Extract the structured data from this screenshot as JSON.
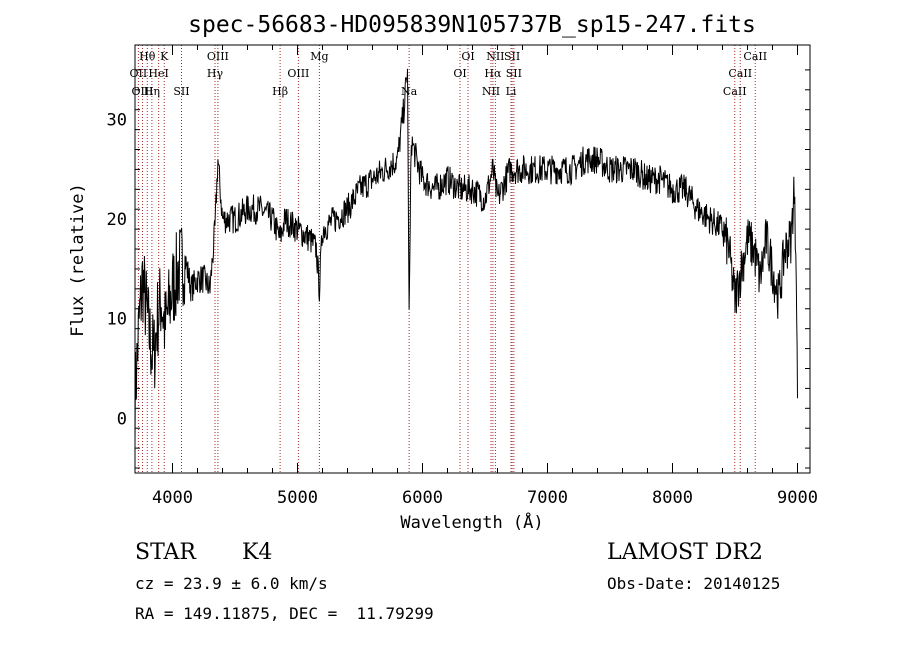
{
  "chart_data": {
    "type": "line",
    "title": "spec-56683-HD095839N105737B_sp15-247.fits",
    "xlabel": "Wavelength (Å)",
    "ylabel": "Flux (relative)",
    "xlim": [
      3700,
      9100
    ],
    "ylim": [
      -5.5,
      37.5
    ],
    "xticks": [
      4000,
      5000,
      6000,
      7000,
      8000,
      9000
    ],
    "yticks": [
      0,
      10,
      20,
      30
    ],
    "grid": false,
    "legend": "none",
    "line_color": "#000000",
    "marker_color": "#a52a2a",
    "spectral_lines": [
      {
        "label": "Hθ",
        "wavelength": 3798,
        "row": 0
      },
      {
        "label": "OII",
        "wavelength": 3727,
        "row": 1
      },
      {
        "label": "OIII",
        "wavelength": 3760,
        "row": 2
      },
      {
        "label": "K",
        "wavelength": 3934,
        "row": 0
      },
      {
        "label": "HeI",
        "wavelength": 3889,
        "row": 1
      },
      {
        "label": "Hη",
        "wavelength": 3835,
        "row": 2
      },
      {
        "label": "SII",
        "wavelength": 4072,
        "row": 2
      },
      {
        "label": "OIII",
        "wavelength": 4363,
        "row": 0
      },
      {
        "label": "Hγ",
        "wavelength": 4340,
        "row": 1
      },
      {
        "label": "Hβ",
        "wavelength": 4861,
        "row": 2
      },
      {
        "label": "OIII",
        "wavelength": 5007,
        "row": 1
      },
      {
        "label": "Mg",
        "wavelength": 5175,
        "row": 0
      },
      {
        "label": "Na",
        "wavelength": 5893,
        "row": 2
      },
      {
        "label": "OI",
        "wavelength": 6364,
        "row": 0
      },
      {
        "label": "OI",
        "wavelength": 6300,
        "row": 1
      },
      {
        "label": "NII",
        "wavelength": 6583,
        "row": 0
      },
      {
        "label": "Hα",
        "wavelength": 6563,
        "row": 1
      },
      {
        "label": "NII",
        "wavelength": 6548,
        "row": 2
      },
      {
        "label": "SII",
        "wavelength": 6717,
        "row": 0
      },
      {
        "label": "SII",
        "wavelength": 6731,
        "row": 1
      },
      {
        "label": "Li",
        "wavelength": 6708,
        "row": 2
      },
      {
        "label": "CaII",
        "wavelength": 8662,
        "row": 0
      },
      {
        "label": "CaII",
        "wavelength": 8542,
        "row": 1
      },
      {
        "label": "CaII",
        "wavelength": 8498,
        "row": 2
      }
    ],
    "series": [
      {
        "x": [
          3700,
          3730,
          3760,
          3790,
          3820,
          3850,
          3880,
          3910,
          3940,
          3970,
          4000,
          4050,
          4100,
          4150,
          4200,
          4250,
          4300,
          4340,
          4363,
          4400,
          4450,
          4500,
          4600,
          4700,
          4800,
          4861,
          4900,
          5000,
          5100,
          5150,
          5175,
          5200,
          5300,
          5400,
          5500,
          5600,
          5700,
          5800,
          5850,
          5880,
          5893,
          5910,
          5950,
          6000,
          6100,
          6200,
          6300,
          6400,
          6500,
          6563,
          6600,
          6700,
          6800,
          6900,
          7000,
          7100,
          7200,
          7300,
          7400,
          7500,
          7600,
          7700,
          7800,
          7900,
          8000,
          8100,
          8200,
          8300,
          8400,
          8450,
          8500,
          8550,
          8600,
          8650,
          8700,
          8750,
          8800,
          8850,
          8900,
          8950,
          8970,
          8990,
          9000
        ],
        "y": [
          2,
          9,
          14,
          11,
          8,
          6,
          10,
          12,
          9,
          11,
          13,
          15,
          16,
          13,
          14,
          14,
          13,
          19,
          26,
          20,
          20,
          20,
          21,
          21,
          20,
          18,
          20,
          19,
          18,
          17,
          13,
          19,
          20,
          21,
          23,
          24,
          25,
          26,
          31,
          35,
          10,
          28,
          26,
          24,
          23,
          24,
          23,
          23,
          22,
          25,
          22,
          25,
          25,
          25,
          25,
          25,
          25,
          26,
          26,
          25,
          25,
          25,
          24,
          24,
          23,
          23,
          21,
          20,
          19,
          17,
          12,
          15,
          18,
          17,
          14,
          18,
          15,
          12,
          17,
          18,
          23,
          16,
          2
        ]
      }
    ]
  },
  "info": {
    "class_label": "STAR",
    "subclass_label": "K4",
    "survey_label": "LAMOST DR2",
    "cz_text": "cz = 23.9 ± 6.0 km/s",
    "obs_date_text": "Obs-Date: 20140125",
    "radec_text": "RA = 149.11875, DEC =  11.79299"
  }
}
